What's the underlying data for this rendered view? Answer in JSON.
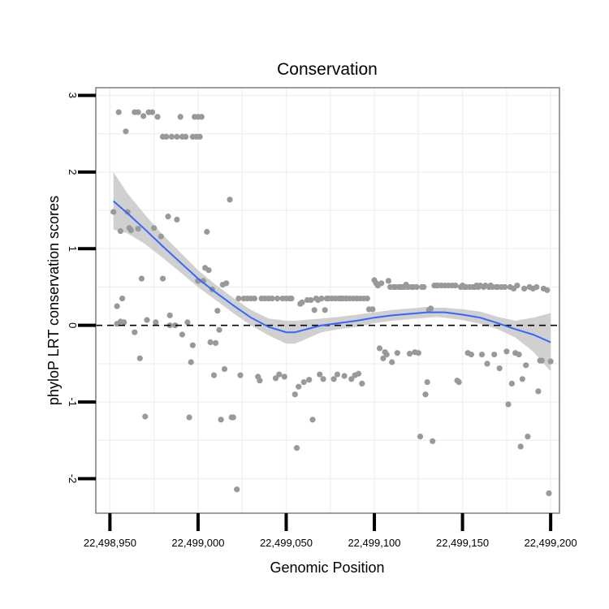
{
  "chart_data": {
    "type": "scatter",
    "title": "Conservation",
    "xlabel": "Genomic Position",
    "ylabel": "phyloP LRT conservation scores",
    "xlim": [
      22498942,
      22499205
    ],
    "ylim": [
      -2.45,
      3.1
    ],
    "x_ticks": [
      22498950,
      22499000,
      22499050,
      22499100,
      22499150,
      22499200
    ],
    "x_tick_labels": [
      "22,498,950",
      "22,499,000",
      "22,499,050",
      "22,499,100",
      "22,499,150",
      "22,499,200"
    ],
    "y_ticks": [
      -2,
      -1,
      0,
      1,
      2,
      3
    ],
    "y_tick_labels": [
      "-2",
      "-1",
      "0",
      "1",
      "2",
      "3"
    ],
    "grid": true,
    "reference_line": {
      "y": 0,
      "style": "dashed",
      "color": "#000000"
    },
    "colors": {
      "points": "#999999",
      "smooth_line": "#3366ff",
      "ribbon": "#c8c8c8",
      "grid": "#f2f2f2",
      "panel_border": "#7f7f7f"
    },
    "series": [
      {
        "name": "phyloP scores",
        "kind": "points",
        "points": [
          [
            22498952,
            1.48
          ],
          [
            22498954,
            0.25
          ],
          [
            22498954,
            0.02
          ],
          [
            22498955,
            2.78
          ],
          [
            22498956,
            1.23
          ],
          [
            22498956,
            0.05
          ],
          [
            22498957,
            0.35
          ],
          [
            22498958,
            0.04
          ],
          [
            22498959,
            2.53
          ],
          [
            22498960,
            1.48
          ],
          [
            22498961,
            1.27
          ],
          [
            22498962,
            1.24
          ],
          [
            22498964,
            2.78
          ],
          [
            22498964,
            -0.09
          ],
          [
            22498966,
            2.78
          ],
          [
            22498966,
            1.26
          ],
          [
            22498967,
            -0.43
          ],
          [
            22498968,
            0.61
          ],
          [
            22498969,
            2.73
          ],
          [
            22498970,
            -1.19
          ],
          [
            22498971,
            0.07
          ],
          [
            22498972,
            2.78
          ],
          [
            22498974,
            2.78
          ],
          [
            22498975,
            1.27
          ],
          [
            22498976,
            0.04
          ],
          [
            22498977,
            2.72
          ],
          [
            22498979,
            1.16
          ],
          [
            22498980,
            0.61
          ],
          [
            22498980,
            2.46
          ],
          [
            22498982,
            2.46
          ],
          [
            22498983,
            1.42
          ],
          [
            22498984,
            0.13
          ],
          [
            22498984,
            0.0
          ],
          [
            22498985,
            2.46
          ],
          [
            22498987,
            0.0
          ],
          [
            22498988,
            2.46
          ],
          [
            22498988,
            1.38
          ],
          [
            22498990,
            2.72
          ],
          [
            22498991,
            -0.12
          ],
          [
            22498991,
            2.46
          ],
          [
            22498993,
            2.46
          ],
          [
            22498994,
            0.04
          ],
          [
            22498995,
            -1.2
          ],
          [
            22498996,
            -0.48
          ],
          [
            22498997,
            -0.26
          ],
          [
            22498997,
            2.46
          ],
          [
            22498998,
            2.72
          ],
          [
            22498999,
            2.46
          ],
          [
            22499000,
            2.72
          ],
          [
            22499000,
            0.58
          ],
          [
            22499001,
            2.46
          ],
          [
            22499002,
            2.72
          ],
          [
            22499003,
            0.58
          ],
          [
            22499004,
            0.75
          ],
          [
            22499005,
            1.22
          ],
          [
            22499006,
            0.72
          ],
          [
            22499007,
            -0.22
          ],
          [
            22499008,
            0.47
          ],
          [
            22499009,
            -0.65
          ],
          [
            22499010,
            -0.23
          ],
          [
            22499011,
            0.19
          ],
          [
            22499012,
            -0.06
          ],
          [
            22499013,
            -1.23
          ],
          [
            22499014,
            0.53
          ],
          [
            22499015,
            -0.57
          ],
          [
            22499016,
            0.55
          ],
          [
            22499018,
            1.64
          ],
          [
            22499019,
            -1.2
          ],
          [
            22499020,
            -1.2
          ],
          [
            22499022,
            -2.14
          ],
          [
            22499023,
            0.35
          ],
          [
            22499024,
            -0.65
          ],
          [
            22499026,
            0.35
          ],
          [
            22499028,
            0.35
          ],
          [
            22499030,
            0.35
          ],
          [
            22499032,
            0.35
          ],
          [
            22499034,
            -0.67
          ],
          [
            22499035,
            -0.72
          ],
          [
            22499036,
            0.35
          ],
          [
            22499038,
            0.35
          ],
          [
            22499040,
            0.35
          ],
          [
            22499042,
            0.35
          ],
          [
            22499044,
            -0.69
          ],
          [
            22499045,
            0.35
          ],
          [
            22499046,
            -0.64
          ],
          [
            22499048,
            0.35
          ],
          [
            22499049,
            -0.67
          ],
          [
            22499050,
            0.35
          ],
          [
            22499052,
            0.35
          ],
          [
            22499053,
            0.35
          ],
          [
            22499055,
            -0.9
          ],
          [
            22499056,
            -1.6
          ],
          [
            22499057,
            -0.8
          ],
          [
            22499058,
            0.28
          ],
          [
            22499059,
            0.3
          ],
          [
            22499060,
            -0.74
          ],
          [
            22499062,
            0.33
          ],
          [
            22499063,
            -0.71
          ],
          [
            22499064,
            0.33
          ],
          [
            22499065,
            -1.23
          ],
          [
            22499066,
            0.2
          ],
          [
            22499067,
            0.35
          ],
          [
            22499068,
            0.33
          ],
          [
            22499069,
            -0.64
          ],
          [
            22499070,
            0.35
          ],
          [
            22499071,
            -0.7
          ],
          [
            22499072,
            0.2
          ],
          [
            22499073,
            0.35
          ],
          [
            22499074,
            0.35
          ],
          [
            22499076,
            0.35
          ],
          [
            22499077,
            -0.7
          ],
          [
            22499078,
            0.35
          ],
          [
            22499079,
            -0.64
          ],
          [
            22499080,
            0.35
          ],
          [
            22499081,
            0.35
          ],
          [
            22499082,
            0.35
          ],
          [
            22499083,
            -0.66
          ],
          [
            22499084,
            0.35
          ],
          [
            22499086,
            0.35
          ],
          [
            22499087,
            -0.7
          ],
          [
            22499088,
            0.35
          ],
          [
            22499089,
            -0.65
          ],
          [
            22499090,
            0.35
          ],
          [
            22499091,
            -0.63
          ],
          [
            22499092,
            0.35
          ],
          [
            22499093,
            -0.76
          ],
          [
            22499094,
            0.35
          ],
          [
            22499096,
            0.35
          ],
          [
            22499097,
            0.21
          ],
          [
            22499099,
            0.21
          ],
          [
            22499100,
            0.59
          ],
          [
            22499101,
            0.55
          ],
          [
            22499102,
            0.52
          ],
          [
            22499103,
            -0.3
          ],
          [
            22499104,
            0.55
          ],
          [
            22499105,
            -0.43
          ],
          [
            22499106,
            -0.35
          ],
          [
            22499107,
            -0.38
          ],
          [
            22499108,
            0.58
          ],
          [
            22499109,
            0.5
          ],
          [
            22499110,
            -0.48
          ],
          [
            22499111,
            0.5
          ],
          [
            22499112,
            0.5
          ],
          [
            22499113,
            -0.36
          ],
          [
            22499114,
            0.5
          ],
          [
            22499115,
            0.5
          ],
          [
            22499116,
            0.5
          ],
          [
            22499117,
            0.5
          ],
          [
            22499118,
            0.53
          ],
          [
            22499119,
            0.5
          ],
          [
            22499120,
            -0.37
          ],
          [
            22499121,
            0.5
          ],
          [
            22499122,
            0.5
          ],
          [
            22499123,
            -0.35
          ],
          [
            22499124,
            0.5
          ],
          [
            22499125,
            -0.36
          ],
          [
            22499126,
            -1.45
          ],
          [
            22499127,
            0.5
          ],
          [
            22499128,
            0.5
          ],
          [
            22499129,
            -0.9
          ],
          [
            22499130,
            -0.74
          ],
          [
            22499131,
            0.2
          ],
          [
            22499132,
            0.22
          ],
          [
            22499133,
            -1.51
          ],
          [
            22499134,
            0.52
          ],
          [
            22499135,
            0.52
          ],
          [
            22499136,
            0.52
          ],
          [
            22499138,
            0.52
          ],
          [
            22499140,
            0.52
          ],
          [
            22499142,
            0.52
          ],
          [
            22499144,
            0.52
          ],
          [
            22499146,
            0.52
          ],
          [
            22499147,
            -0.72
          ],
          [
            22499148,
            -0.74
          ],
          [
            22499149,
            0.5
          ],
          [
            22499150,
            0.52
          ],
          [
            22499151,
            0.5
          ],
          [
            22499152,
            0.5
          ],
          [
            22499153,
            -0.36
          ],
          [
            22499154,
            0.5
          ],
          [
            22499155,
            -0.38
          ],
          [
            22499156,
            0.5
          ],
          [
            22499157,
            0.5
          ],
          [
            22499158,
            0.52
          ],
          [
            22499159,
            0.5
          ],
          [
            22499160,
            0.52
          ],
          [
            22499161,
            -0.38
          ],
          [
            22499162,
            0.5
          ],
          [
            22499163,
            0.52
          ],
          [
            22499164,
            -0.5
          ],
          [
            22499165,
            0.5
          ],
          [
            22499166,
            0.52
          ],
          [
            22499167,
            0.5
          ],
          [
            22499168,
            -0.38
          ],
          [
            22499169,
            0.5
          ],
          [
            22499170,
            0.5
          ],
          [
            22499171,
            -0.56
          ],
          [
            22499172,
            0.5
          ],
          [
            22499174,
            0.5
          ],
          [
            22499175,
            -0.34
          ],
          [
            22499176,
            -1.03
          ],
          [
            22499177,
            0.5
          ],
          [
            22499178,
            -0.76
          ],
          [
            22499179,
            0.48
          ],
          [
            22499180,
            -0.36
          ],
          [
            22499181,
            0.52
          ],
          [
            22499182,
            -0.38
          ],
          [
            22499183,
            -1.58
          ],
          [
            22499184,
            -0.7
          ],
          [
            22499185,
            0.48
          ],
          [
            22499186,
            -0.52
          ],
          [
            22499187,
            -1.45
          ],
          [
            22499188,
            0.5
          ],
          [
            22499190,
            0.48
          ],
          [
            22499192,
            0.5
          ],
          [
            22499193,
            -0.86
          ],
          [
            22499194,
            -0.46
          ],
          [
            22499195,
            -0.46
          ],
          [
            22499196,
            0.48
          ],
          [
            22499198,
            0.46
          ],
          [
            22499199,
            -2.19
          ],
          [
            22499200,
            -0.47
          ]
        ]
      },
      {
        "name": "LOESS smooth",
        "kind": "line",
        "x": [
          22498952,
          22498960,
          22498970,
          22498980,
          22498990,
          22499000,
          22499010,
          22499020,
          22499030,
          22499040,
          22499050,
          22499055,
          22499060,
          22499070,
          22499080,
          22499090,
          22499100,
          22499110,
          22499120,
          22499130,
          22499135,
          22499140,
          22499150,
          22499160,
          22499170,
          22499180,
          22499190,
          22499200
        ],
        "y": [
          1.62,
          1.46,
          1.25,
          1.03,
          0.82,
          0.61,
          0.43,
          0.26,
          0.1,
          -0.02,
          -0.09,
          -0.09,
          -0.06,
          0.0,
          0.03,
          0.06,
          0.1,
          0.13,
          0.15,
          0.17,
          0.17,
          0.17,
          0.14,
          0.1,
          0.03,
          -0.05,
          -0.12,
          -0.22
        ],
        "lower": [
          1.25,
          1.2,
          1.06,
          0.88,
          0.69,
          0.5,
          0.33,
          0.16,
          0.0,
          -0.13,
          -0.24,
          -0.24,
          -0.19,
          -0.09,
          -0.05,
          -0.02,
          0.03,
          0.06,
          0.08,
          0.1,
          0.11,
          0.1,
          0.07,
          0.02,
          -0.05,
          -0.16,
          -0.34,
          -0.6
        ],
        "upper": [
          2.0,
          1.72,
          1.44,
          1.18,
          0.95,
          0.72,
          0.53,
          0.36,
          0.2,
          0.09,
          0.06,
          0.06,
          0.07,
          0.09,
          0.11,
          0.14,
          0.17,
          0.2,
          0.22,
          0.24,
          0.23,
          0.23,
          0.21,
          0.18,
          0.11,
          0.06,
          0.1,
          0.16
        ]
      }
    ]
  }
}
